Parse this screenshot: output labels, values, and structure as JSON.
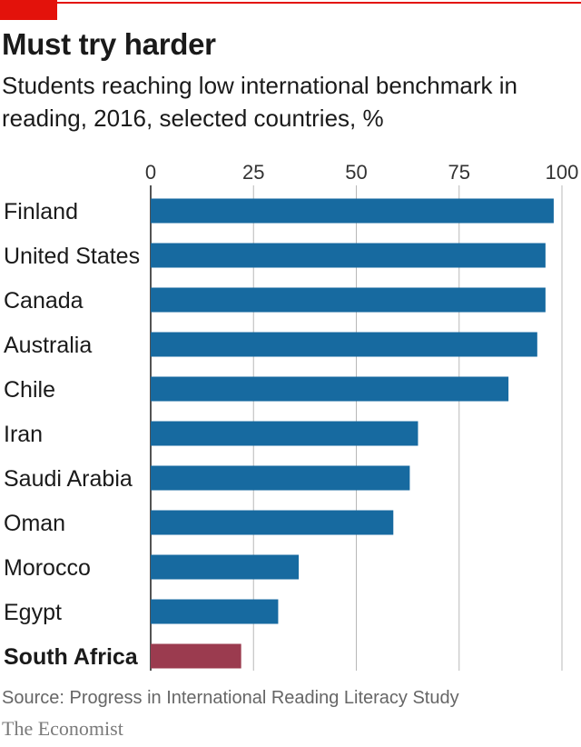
{
  "header": {
    "title": "Must try harder",
    "subtitle": "Students reaching low international benchmark in reading, 2016, selected countries, %"
  },
  "footer": {
    "source": "Source: Progress in International Reading Literacy Study",
    "brand": "The Economist"
  },
  "colors": {
    "accent": "#e3120b",
    "bar": "#176aa0",
    "highlight_bar": "#9b3b4f",
    "gridline": "#b8b8b8"
  },
  "chart_data": {
    "type": "bar",
    "orientation": "horizontal",
    "title": "Must try harder",
    "subtitle": "Students reaching low international benchmark in reading, 2016, selected countries, %",
    "xlim": [
      0,
      100
    ],
    "ticks": [
      0,
      25,
      50,
      75,
      100
    ],
    "tick_position": "top",
    "grid": true,
    "categories": [
      "Finland",
      "United States",
      "Canada",
      "Australia",
      "Chile",
      "Iran",
      "Saudi Arabia",
      "Oman",
      "Morocco",
      "Egypt",
      "South Africa"
    ],
    "values": [
      98,
      96,
      96,
      94,
      87,
      65,
      63,
      59,
      36,
      31,
      22
    ],
    "highlight": "South Africa"
  }
}
